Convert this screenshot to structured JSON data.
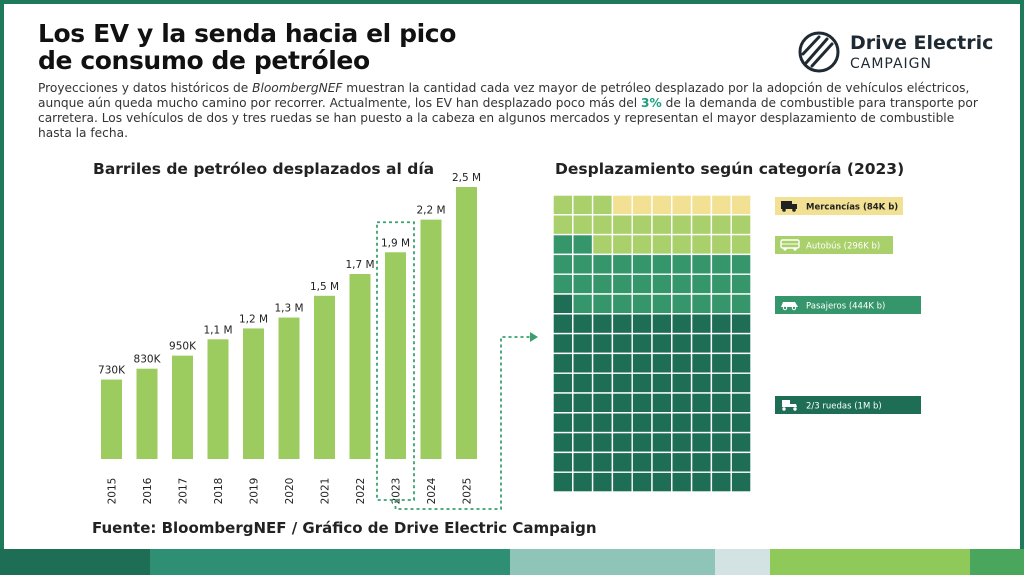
{
  "header": {
    "title_line1": "Los EV y la senda hacia el pico",
    "title_line2": "de consumo de petróleo",
    "intro_part1": "Proyecciones y datos históricos de ",
    "intro_source": "BloombergNEF",
    "intro_part2": " muestran la cantidad cada vez mayor de petróleo desplazado por la adopción de vehículos eléctricos, aunque aún queda mucho camino por recorrer. Actualmente, los EV han desplazado poco más del ",
    "intro_pct": "3%",
    "intro_part3": " de la demanda de combustible para transporte por carretera. Los vehículos de dos y tres ruedas se han puesto a la cabeza en algunos mercados y representan el mayor desplazamiento de combustible hasta la fecha."
  },
  "logo": {
    "line1": "Drive Electric",
    "line2": "CAMPAIGN"
  },
  "footer": {
    "source": "Fuente: BloombergNEF / Gráfico de Drive Electric Campaign"
  },
  "colors": {
    "bar": "#9ccb5f",
    "highlight_box": "#3aa070",
    "mercancias": "#f2e193",
    "autobus": "#a9d06a",
    "pasajeros": "#36966b",
    "ruedas": "#1d6e55",
    "grid_line": "#ffffff",
    "stripes": [
      "#1d6e55",
      "#2f8f75",
      "#8fc5b8",
      "#d3e3e3",
      "#8fc95a",
      "#4aa65d"
    ]
  },
  "chart_data": [
    {
      "type": "bar",
      "title": "Barriles de petróleo desplazados al día",
      "categories": [
        "2015",
        "2016",
        "2017",
        "2018",
        "2019",
        "2020",
        "2021",
        "2022",
        "2023",
        "2024",
        "2025"
      ],
      "values": [
        730000,
        830000,
        950000,
        1100000,
        1200000,
        1300000,
        1500000,
        1700000,
        1900000,
        2200000,
        2500000
      ],
      "labels": [
        "730K",
        "830K",
        "950K",
        "1,1 M",
        "1,2 M",
        "1,3 M",
        "1,5 M",
        "1,7 M",
        "1,9 M",
        "2,2 M",
        "2,5 M"
      ],
      "highlight": "2023",
      "ylim": [
        0,
        2500000
      ],
      "xlabel": "",
      "ylabel": ""
    },
    {
      "type": "waffle",
      "title": "Desplazamiento según categoría",
      "title_year": "(2023)",
      "series": [
        {
          "name": "Mercancías",
          "label": "Mercancías (84K b)",
          "value": 84000,
          "icon": "truck-icon",
          "cells": 7
        },
        {
          "name": "Autobús",
          "label": "Autobús (296K b)",
          "value": 296000,
          "icon": "bus-icon",
          "cells": 21
        },
        {
          "name": "Pasajeros",
          "label": "Pasajeros (444K b)",
          "value": 444000,
          "icon": "car-icon",
          "cells": 31
        },
        {
          "name": "2/3 ruedas",
          "label": "2/3 ruedas (1M b)",
          "value": 1000000,
          "icon": "scooter-icon",
          "cells": 71
        }
      ]
    }
  ]
}
